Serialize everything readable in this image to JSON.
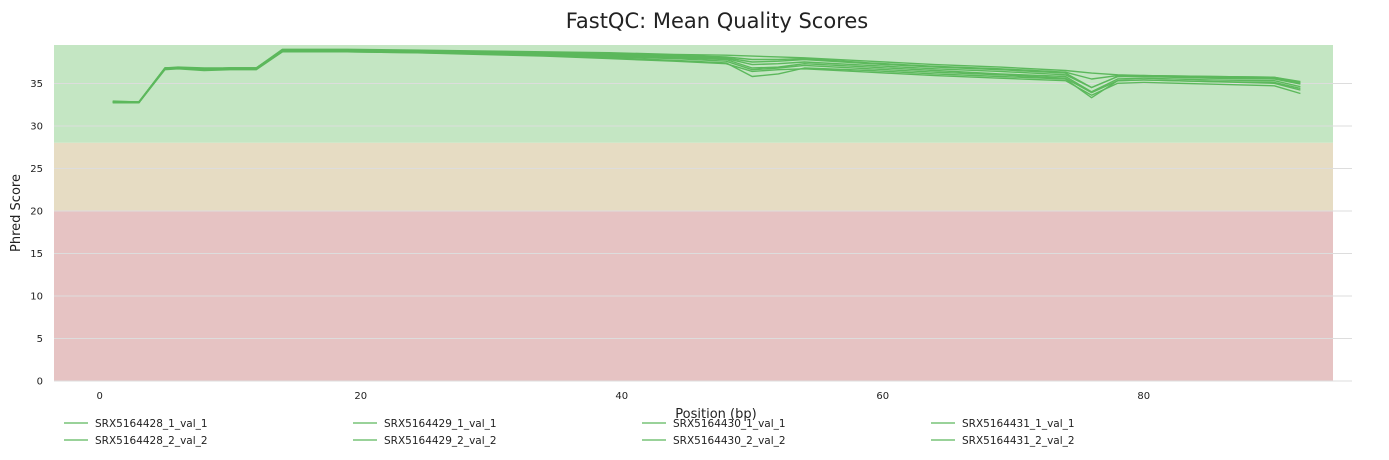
{
  "chart_data": {
    "type": "line",
    "title": "FastQC: Mean Quality Scores",
    "xlabel": "Position (bp)",
    "ylabel": "Phred Score",
    "xlim": [
      -3.5,
      94.5
    ],
    "ylim": [
      0,
      39.5
    ],
    "x_ticks": [
      0,
      20,
      40,
      60,
      80
    ],
    "y_ticks": [
      0,
      5,
      10,
      15,
      20,
      25,
      30,
      35
    ],
    "grid": true,
    "legend_position": "bottom",
    "bands": [
      {
        "from": 28,
        "to": 39.5,
        "color": "#c4e6c3"
      },
      {
        "from": 20,
        "to": 28,
        "color": "#e6dcc3"
      },
      {
        "from": 0,
        "to": 20,
        "color": "#e6c3c3"
      }
    ],
    "line_color": "#5cb85c",
    "x": [
      1,
      3,
      5,
      6,
      8,
      10,
      12,
      14,
      19,
      24,
      29,
      34,
      39,
      44,
      48,
      50,
      52,
      54,
      59,
      64,
      69,
      74,
      76,
      78,
      80,
      85,
      90,
      92
    ],
    "series": [
      {
        "name": "SRX5164428_1_val_1",
        "values": [
          32.8,
          32.8,
          36.8,
          36.8,
          36.7,
          36.8,
          36.8,
          38.9,
          38.9,
          38.8,
          38.7,
          38.6,
          38.4,
          38.2,
          38.0,
          37.5,
          37.6,
          37.8,
          37.3,
          36.9,
          36.6,
          36.2,
          34.5,
          35.8,
          35.9,
          35.7,
          35.6,
          35.0
        ]
      },
      {
        "name": "SRX5164428_2_val_2",
        "values": [
          32.8,
          32.7,
          36.7,
          36.8,
          36.6,
          36.7,
          36.7,
          38.7,
          38.7,
          38.6,
          38.5,
          38.3,
          38.0,
          37.7,
          37.4,
          35.8,
          36.1,
          36.8,
          36.5,
          36.1,
          35.8,
          35.5,
          33.3,
          35.3,
          35.4,
          35.2,
          35.0,
          34.2
        ]
      },
      {
        "name": "SRX5164429_1_val_1",
        "values": [
          32.9,
          32.8,
          36.8,
          36.9,
          36.8,
          36.8,
          36.8,
          39.0,
          39.0,
          38.9,
          38.8,
          38.7,
          38.6,
          38.4,
          38.3,
          38.2,
          38.1,
          38.0,
          37.6,
          37.2,
          36.9,
          36.5,
          36.2,
          36.0,
          35.9,
          35.8,
          35.7,
          35.2
        ]
      },
      {
        "name": "SRX5164429_2_val_2",
        "values": [
          32.8,
          32.7,
          36.7,
          36.8,
          36.6,
          36.7,
          36.7,
          38.8,
          38.8,
          38.7,
          38.6,
          38.4,
          38.2,
          38.0,
          37.8,
          36.8,
          36.9,
          37.3,
          36.9,
          36.5,
          36.1,
          35.8,
          34.0,
          35.5,
          35.6,
          35.4,
          35.3,
          34.6
        ]
      },
      {
        "name": "SRX5164430_1_val_1",
        "values": [
          32.8,
          32.8,
          36.8,
          36.8,
          36.7,
          36.8,
          36.8,
          38.9,
          38.9,
          38.8,
          38.7,
          38.5,
          38.3,
          38.1,
          37.9,
          37.2,
          37.3,
          37.5,
          37.1,
          36.7,
          36.4,
          36.0,
          34.5,
          35.8,
          35.8,
          35.6,
          35.5,
          34.9
        ]
      },
      {
        "name": "SRX5164430_2_val_2",
        "values": [
          32.7,
          32.7,
          36.6,
          36.7,
          36.5,
          36.6,
          36.6,
          38.7,
          38.7,
          38.6,
          38.4,
          38.2,
          37.9,
          37.6,
          37.3,
          36.4,
          36.6,
          36.7,
          36.3,
          35.9,
          35.6,
          35.3,
          33.6,
          35.0,
          35.1,
          34.9,
          34.7,
          33.8
        ]
      },
      {
        "name": "SRX5164431_1_val_1",
        "values": [
          32.8,
          32.8,
          36.8,
          36.8,
          36.7,
          36.8,
          36.8,
          38.9,
          38.9,
          38.8,
          38.7,
          38.6,
          38.5,
          38.3,
          38.1,
          37.8,
          37.8,
          37.9,
          37.4,
          37.0,
          36.7,
          36.3,
          35.5,
          35.9,
          35.9,
          35.8,
          35.7,
          35.1
        ]
      },
      {
        "name": "SRX5164431_2_val_2",
        "values": [
          32.8,
          32.7,
          36.7,
          36.8,
          36.6,
          36.7,
          36.7,
          38.8,
          38.8,
          38.7,
          38.5,
          38.3,
          38.1,
          37.9,
          37.6,
          36.6,
          36.8,
          37.1,
          36.7,
          36.3,
          36.0,
          35.6,
          33.9,
          35.3,
          35.4,
          35.2,
          35.1,
          34.4
        ]
      }
    ]
  }
}
